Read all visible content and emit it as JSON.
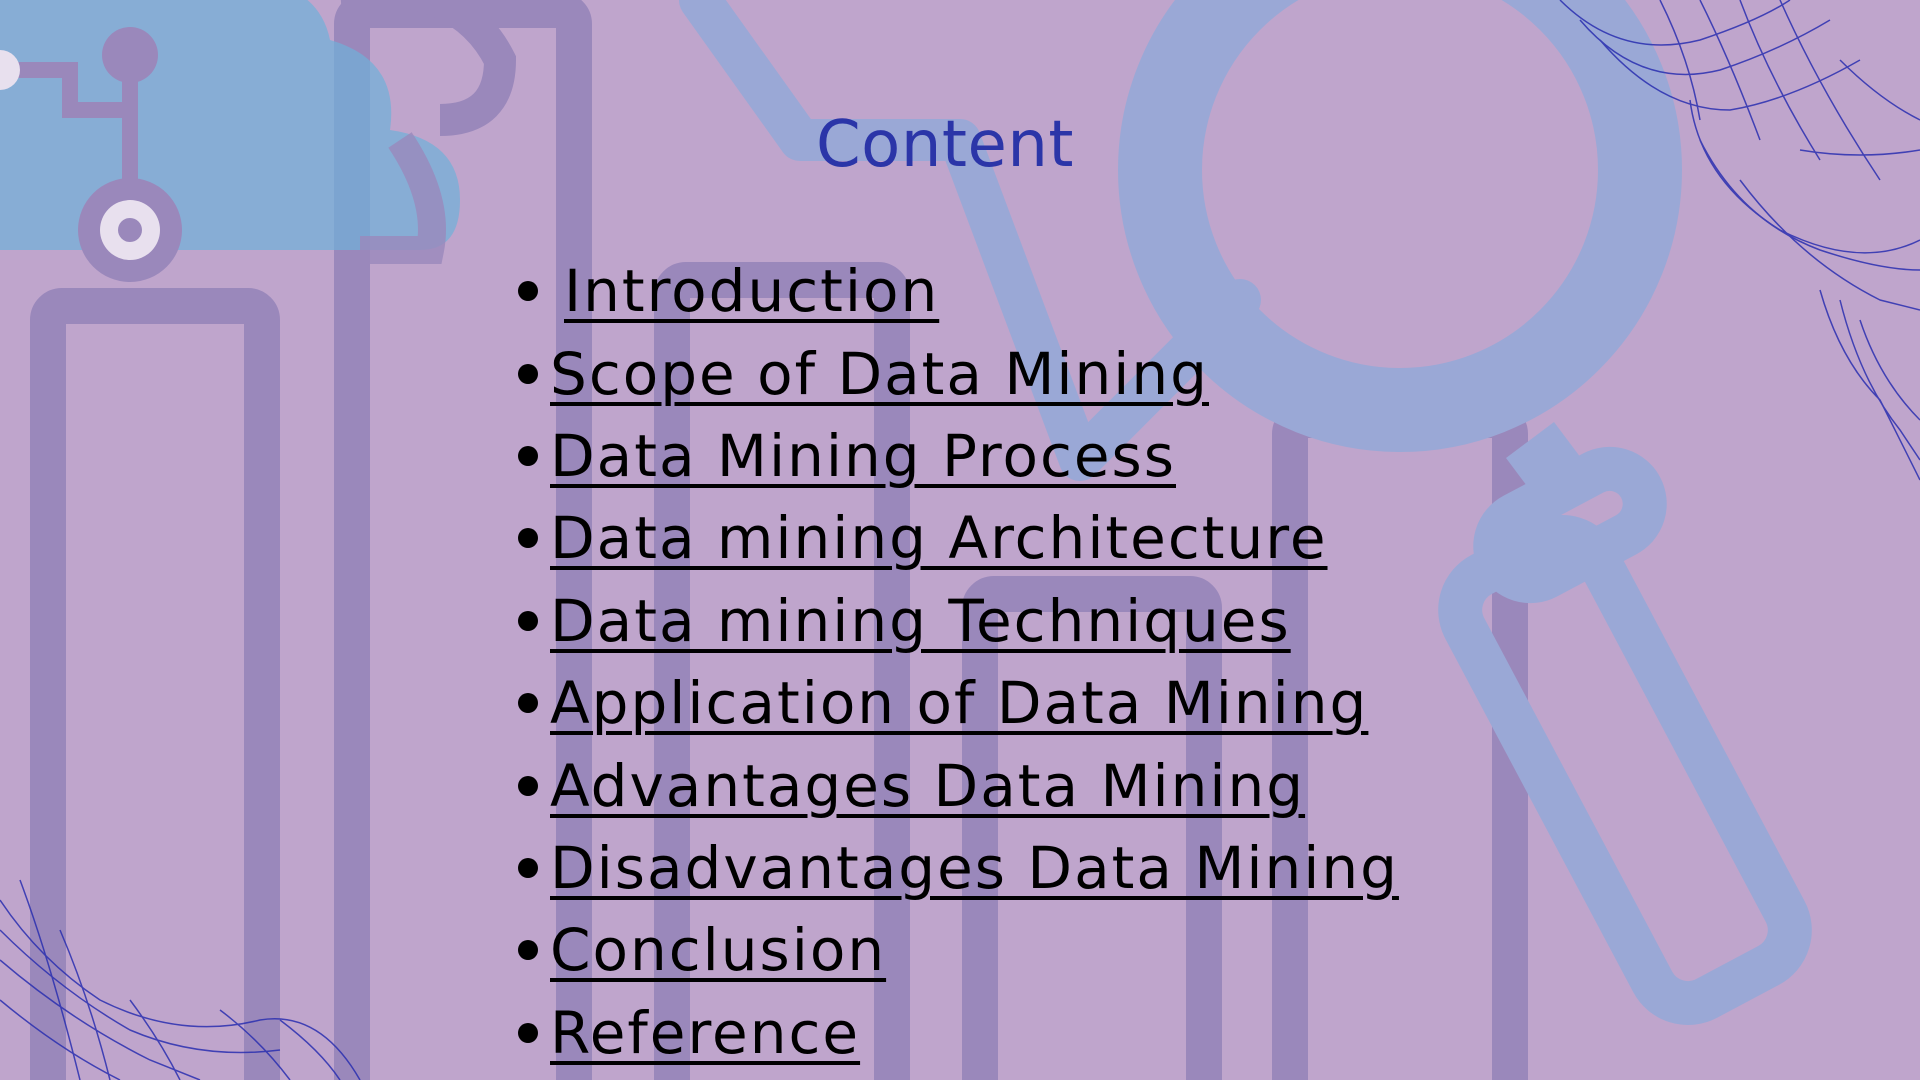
{
  "slide": {
    "title": "Content",
    "items": [
      {
        "label": "Introduction"
      },
      {
        "label": "Scope of Data Mining"
      },
      {
        "label": "Data Mining Process"
      },
      {
        "label": "Data mining Architecture"
      },
      {
        "label": "Data mining Techniques"
      },
      {
        "label": "Application of Data Mining"
      },
      {
        "label": "Advantages Data Mining"
      },
      {
        "label": "Disadvantages Data Mining"
      },
      {
        "label": "Conclusion"
      },
      {
        "label": "Reference"
      }
    ]
  },
  "colors": {
    "background": "#bfa5cc",
    "title": "#2b35a8",
    "text": "#000000",
    "decor_light_blue": "#9aa8d6",
    "decor_purple": "#9a88bb",
    "decor_cloud": "#6fb0d8",
    "decor_wire": "#2a2fb0"
  },
  "icons": [
    "magnifier-icon",
    "cloud-network-icon",
    "bar-chart-decoration",
    "wireframe-wave-decoration"
  ]
}
